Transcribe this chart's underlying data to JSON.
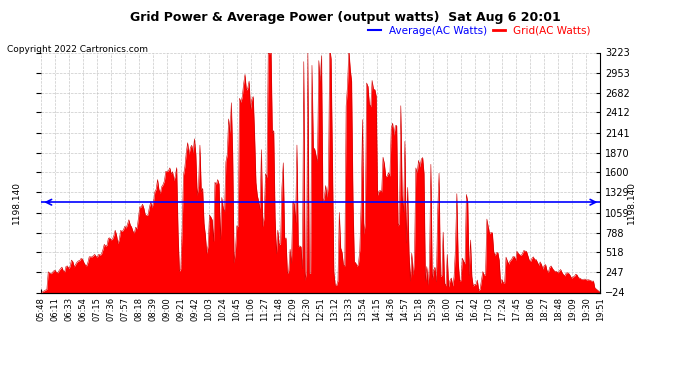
{
  "title": "Grid Power & Average Power (output watts)  Sat Aug 6 20:01",
  "copyright": "Copyright 2022 Cartronics.com",
  "average_value": 1198.14,
  "average_label": "1198.140",
  "y_min": -23.5,
  "y_max": 3223.4,
  "yticks": [
    -23.5,
    247.1,
    517.7,
    788.2,
    1058.8,
    1329.4,
    1600.0,
    1870.5,
    2141.1,
    2411.7,
    2682.2,
    2952.8,
    3223.4
  ],
  "fill_color": "#FF0000",
  "line_color": "#CC0000",
  "average_line_color": "#0000FF",
  "background_color": "#FFFFFF",
  "grid_color": "#BBBBBB",
  "title_color": "#000000",
  "legend_average_color": "#0000FF",
  "legend_grid_color": "#FF0000",
  "x_labels": [
    "05:48",
    "06:11",
    "06:33",
    "06:54",
    "07:15",
    "07:36",
    "07:57",
    "08:18",
    "08:39",
    "09:00",
    "09:21",
    "09:42",
    "10:03",
    "10:24",
    "10:45",
    "11:06",
    "11:27",
    "11:48",
    "12:09",
    "12:30",
    "12:51",
    "13:12",
    "13:33",
    "13:54",
    "14:15",
    "14:36",
    "14:57",
    "15:18",
    "15:39",
    "16:00",
    "16:21",
    "16:42",
    "17:03",
    "17:24",
    "17:45",
    "18:06",
    "18:27",
    "18:48",
    "19:09",
    "19:30",
    "19:51"
  ],
  "num_points": 410
}
